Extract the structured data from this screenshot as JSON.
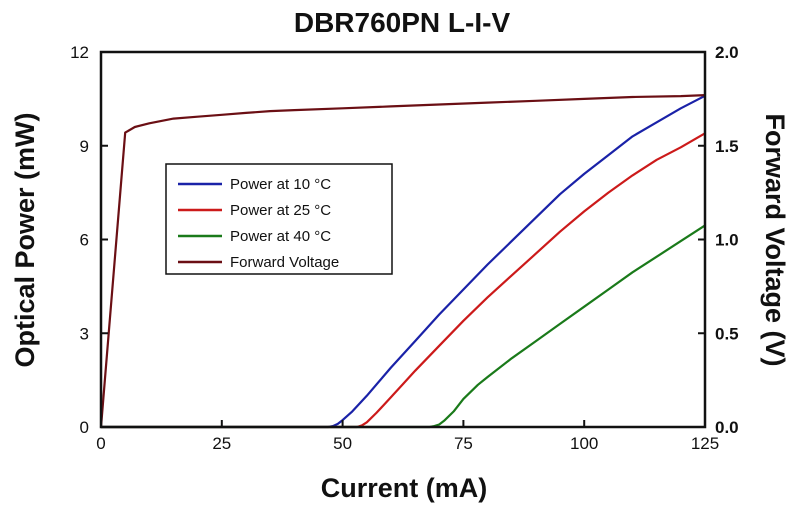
{
  "chart_data": {
    "type": "line",
    "title": "DBR760PN L-I-V",
    "xlabel": "Current (mA)",
    "ylabel": "Optical Power (mW)",
    "y2label": "Forward Voltage (V)",
    "xlim": [
      0,
      125
    ],
    "ylim": [
      0,
      12
    ],
    "y2lim": [
      0,
      2.0
    ],
    "x_ticks": [
      "0",
      "25",
      "50",
      "75",
      "100",
      "125"
    ],
    "y_ticks": [
      "0",
      "3",
      "6",
      "9",
      "12"
    ],
    "y2_ticks": [
      "0.0",
      "0.5",
      "1.0",
      "1.5",
      "2.0"
    ],
    "grid": false,
    "legend_position": "center-left",
    "series": [
      {
        "name": "Power at 10 °C",
        "color": "#1a22a8",
        "axis": "left",
        "points": [
          [
            0,
            0
          ],
          [
            47,
            0
          ],
          [
            48,
            0.03
          ],
          [
            49,
            0.1
          ],
          [
            50,
            0.22
          ],
          [
            52,
            0.5
          ],
          [
            55,
            1.0
          ],
          [
            60,
            1.9
          ],
          [
            65,
            2.75
          ],
          [
            70,
            3.6
          ],
          [
            75,
            4.4
          ],
          [
            80,
            5.2
          ],
          [
            85,
            5.95
          ],
          [
            90,
            6.7
          ],
          [
            95,
            7.45
          ],
          [
            100,
            8.1
          ],
          [
            105,
            8.7
          ],
          [
            110,
            9.3
          ],
          [
            115,
            9.75
          ],
          [
            120,
            10.2
          ],
          [
            125,
            10.6
          ]
        ]
      },
      {
        "name": "Power at 25 °C",
        "color": "#cc1a1a",
        "axis": "left",
        "points": [
          [
            0,
            0
          ],
          [
            53,
            0
          ],
          [
            54,
            0.05
          ],
          [
            55,
            0.15
          ],
          [
            57,
            0.45
          ],
          [
            60,
            0.95
          ],
          [
            65,
            1.8
          ],
          [
            70,
            2.6
          ],
          [
            75,
            3.4
          ],
          [
            80,
            4.15
          ],
          [
            85,
            4.85
          ],
          [
            90,
            5.55
          ],
          [
            95,
            6.25
          ],
          [
            100,
            6.9
          ],
          [
            105,
            7.5
          ],
          [
            110,
            8.05
          ],
          [
            115,
            8.55
          ],
          [
            120,
            8.95
          ],
          [
            125,
            9.4
          ]
        ]
      },
      {
        "name": "Power at 40 °C",
        "color": "#1a7a1a",
        "axis": "left",
        "points": [
          [
            0,
            0
          ],
          [
            68,
            0
          ],
          [
            69,
            0.03
          ],
          [
            70,
            0.08
          ],
          [
            71,
            0.2
          ],
          [
            73,
            0.5
          ],
          [
            75,
            0.9
          ],
          [
            78,
            1.35
          ],
          [
            80,
            1.6
          ],
          [
            85,
            2.2
          ],
          [
            90,
            2.75
          ],
          [
            95,
            3.3
          ],
          [
            100,
            3.85
          ],
          [
            105,
            4.4
          ],
          [
            110,
            4.95
          ],
          [
            115,
            5.45
          ],
          [
            120,
            5.95
          ],
          [
            125,
            6.45
          ]
        ]
      },
      {
        "name": "Forward Voltage",
        "color": "#6b0f14",
        "axis": "right",
        "points": [
          [
            0,
            0
          ],
          [
            5,
            1.57
          ],
          [
            7,
            1.6
          ],
          [
            10,
            1.62
          ],
          [
            15,
            1.645
          ],
          [
            20,
            1.655
          ],
          [
            25,
            1.665
          ],
          [
            30,
            1.675
          ],
          [
            35,
            1.685
          ],
          [
            40,
            1.69
          ],
          [
            50,
            1.7
          ],
          [
            60,
            1.71
          ],
          [
            70,
            1.72
          ],
          [
            80,
            1.73
          ],
          [
            90,
            1.74
          ],
          [
            100,
            1.75
          ],
          [
            110,
            1.76
          ],
          [
            120,
            1.765
          ],
          [
            125,
            1.77
          ]
        ]
      }
    ]
  }
}
